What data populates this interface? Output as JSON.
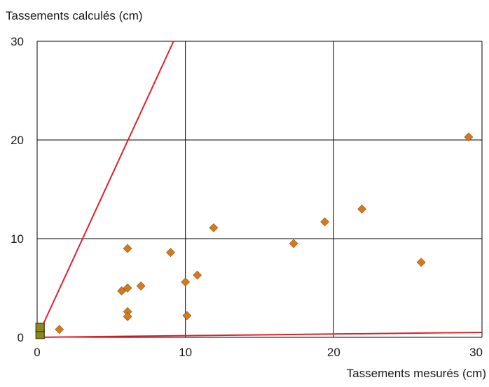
{
  "chart_data": {
    "type": "scatter",
    "title": "",
    "xlabel": "Tassements mesurés (cm)",
    "ylabel": "Tassements calculés (cm)",
    "xlim": [
      0,
      30
    ],
    "ylim": [
      0,
      30
    ],
    "x_ticks": [
      "0",
      "10",
      "20",
      "30"
    ],
    "y_ticks": [
      "0",
      "10",
      "20",
      "30"
    ],
    "grid": true,
    "colors": {
      "grid": "#000000",
      "points": "#d17a1e",
      "points_outline": "#9a5410",
      "lines": "#e0202a",
      "square": "#8a8a1a",
      "square_outline": "#3a3a08"
    },
    "series": [
      {
        "marker": "diamond",
        "points": [
          [
            1.5,
            0.8
          ],
          [
            5.7,
            4.7
          ],
          [
            6.1,
            5.0
          ],
          [
            6.1,
            9.0
          ],
          [
            6.1,
            2.6
          ],
          [
            6.1,
            2.1
          ],
          [
            7.0,
            5.2
          ],
          [
            9.0,
            8.6
          ],
          [
            10.0,
            5.6
          ],
          [
            10.1,
            2.2
          ],
          [
            10.8,
            6.3
          ],
          [
            11.9,
            11.1
          ],
          [
            17.3,
            9.5
          ],
          [
            19.4,
            11.7
          ],
          [
            21.9,
            13.0
          ],
          [
            25.9,
            7.6
          ],
          [
            29.1,
            20.3
          ]
        ]
      },
      {
        "marker": "square",
        "points": [
          [
            0.2,
            0.3
          ],
          [
            0.2,
            1.0
          ]
        ]
      }
    ],
    "reference_lines": [
      {
        "from": [
          0,
          0
        ],
        "to": [
          9.2,
          30
        ]
      },
      {
        "from": [
          0,
          0
        ],
        "to": [
          30,
          0.5
        ]
      }
    ]
  }
}
